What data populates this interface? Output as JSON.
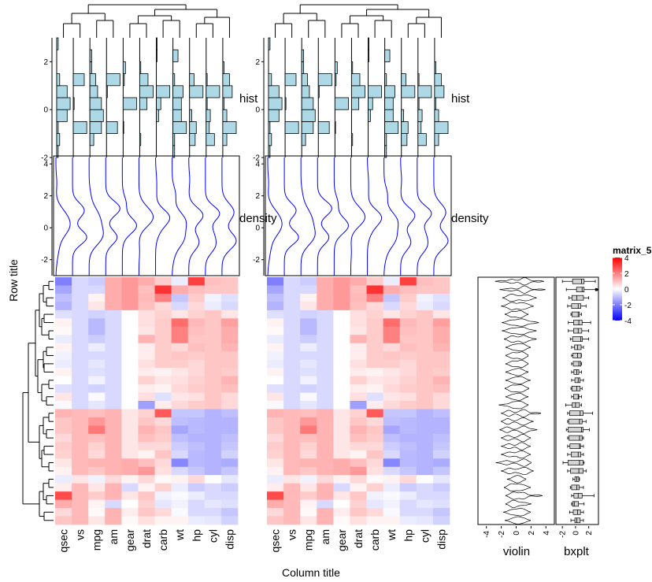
{
  "chart_data": {
    "type": "heatmap",
    "column_title": "Column title",
    "row_title": "Row title",
    "row_title_color": "#ff0000",
    "columns": [
      "qsec",
      "vs",
      "mpg",
      "am",
      "gear",
      "drat",
      "carb",
      "wt",
      "hp",
      "cyl",
      "disp"
    ],
    "annotations": {
      "top": [
        {
          "name": "hist",
          "type": "histogram",
          "ylim": [
            -2,
            3
          ],
          "ticks": [
            "-2",
            "0",
            "2"
          ],
          "fill": "#add8e6"
        },
        {
          "name": "density",
          "type": "density",
          "ylim": [
            -3,
            4.5
          ],
          "ticks": [
            "-2",
            "0",
            "2",
            "4"
          ],
          "color": "#0000ff"
        }
      ],
      "right": [
        {
          "name": "violin",
          "type": "violin",
          "ticks": [
            "-4",
            "-2",
            "0",
            "2",
            "4"
          ]
        },
        {
          "name": "bxplt",
          "type": "boxplot",
          "ticks": [
            "-2",
            "0",
            "2"
          ]
        }
      ]
    },
    "legend": {
      "title": "matrix_5",
      "ticks": [
        "4",
        "2",
        "0",
        "-2",
        "-4"
      ],
      "range": [
        -4,
        4
      ],
      "colors": {
        "low": "#0000ff",
        "mid": "#ffffff",
        "high": "#ff0000"
      }
    },
    "row_groups": [
      {
        "rows": [
          [
            -2.0,
            -0.6,
            -0.8,
            1.3,
            1.6,
            1.3,
            0.8,
            -0.3,
            3.0,
            1.0,
            0.9
          ],
          [
            -1.4,
            -0.6,
            -0.6,
            1.3,
            1.6,
            1.0,
            3.2,
            1.3,
            1.0,
            0.9,
            0.9
          ],
          [
            -1.0,
            -0.6,
            0.2,
            1.3,
            1.6,
            1.1,
            2.0,
            -0.9,
            0.8,
            -0.2,
            -0.5
          ],
          [
            -1.2,
            -0.6,
            0.4,
            1.3,
            1.6,
            1.0,
            0.6,
            -0.6,
            0.6,
            -0.3,
            -0.6
          ],
          [
            -0.5,
            -0.6,
            -0.7,
            -0.6,
            0.0,
            0.5,
            0.7,
            0.4,
            0.7,
            0.9,
            0.4
          ],
          [
            0.2,
            -0.6,
            -1.1,
            -0.6,
            0.0,
            0.5,
            0.8,
            2.3,
            1.1,
            0.9,
            1.5
          ],
          [
            0.1,
            -0.6,
            -1.1,
            -0.6,
            0.0,
            0.4,
            0.8,
            2.0,
            1.0,
            0.9,
            1.3
          ],
          [
            -0.3,
            -0.6,
            -0.8,
            -0.6,
            0.0,
            1.2,
            0.8,
            2.0,
            0.9,
            0.9,
            1.3
          ],
          [
            0.2,
            -0.6,
            -0.3,
            -0.6,
            0.0,
            0.3,
            0.8,
            0.6,
            1.0,
            0.9,
            1.2
          ],
          [
            -0.2,
            -0.6,
            -0.6,
            -0.6,
            0.0,
            0.3,
            0.8,
            0.9,
            0.8,
            0.9,
            0.9
          ],
          [
            -0.3,
            -0.6,
            -0.4,
            -0.6,
            0.0,
            0.5,
            0.8,
            0.8,
            0.6,
            0.9,
            0.9
          ],
          [
            0.2,
            -0.6,
            -0.5,
            -0.6,
            0.0,
            0.3,
            0.2,
            0.4,
            0.6,
            0.9,
            0.8
          ],
          [
            0.0,
            -0.6,
            -0.2,
            -0.6,
            0.0,
            0.7,
            0.4,
            0.5,
            0.7,
            0.9,
            1.2
          ],
          [
            -0.5,
            -0.6,
            -0.7,
            -0.6,
            0.0,
            0.3,
            0.2,
            0.6,
            0.8,
            0.9,
            1.0
          ],
          [
            0.4,
            -0.6,
            -0.1,
            -0.6,
            0.0,
            0.5,
            -0.5,
            0.4,
            0.5,
            0.9,
            0.6
          ],
          [
            -0.1,
            -0.6,
            -0.4,
            -0.6,
            0.0,
            -1.5,
            0.3,
            0.6,
            0.8,
            0.9,
            0.6
          ]
        ]
      },
      {
        "rows": [
          [
            1.2,
            1.1,
            1.0,
            1.2,
            0.4,
            0.7,
            2.6,
            -0.9,
            -0.9,
            -1.2,
            -1.0
          ],
          [
            0.9,
            1.1,
            1.6,
            1.2,
            0.4,
            0.9,
            0.6,
            -1.0,
            -1.1,
            -1.2,
            -1.2
          ],
          [
            0.9,
            1.1,
            2.1,
            1.2,
            0.4,
            1.2,
            0.9,
            -1.4,
            -1.1,
            -1.2,
            -1.2
          ],
          [
            0.6,
            1.1,
            1.0,
            1.2,
            0.4,
            1.0,
            0.8,
            -1.0,
            -1.2,
            -1.2,
            -1.0
          ],
          [
            0.8,
            1.1,
            0.7,
            1.2,
            0.4,
            0.6,
            0.6,
            -0.8,
            -1.0,
            -1.2,
            -0.9
          ],
          [
            0.7,
            1.1,
            0.6,
            1.2,
            0.4,
            0.2,
            0.9,
            -0.6,
            -1.1,
            -1.2,
            -0.7
          ],
          [
            0.4,
            1.1,
            1.2,
            1.2,
            1.3,
            1.0,
            0.6,
            -1.9,
            -1.1,
            -1.2,
            -1.3
          ],
          [
            0.2,
            1.1,
            0.9,
            1.2,
            1.3,
            1.6,
            0.5,
            -0.6,
            -0.9,
            -1.2,
            -0.9
          ]
        ]
      },
      {
        "rows": [
          [
            -0.3,
            0.4,
            -0.2,
            0.6,
            0.2,
            0.6,
            0.1,
            0.2,
            0.6,
            0.0,
            -0.4
          ],
          [
            0.3,
            1.1,
            0.4,
            1.2,
            -0.6,
            0.2,
            0.7,
            -0.3,
            -0.8,
            -0.6,
            -0.8
          ],
          [
            2.8,
            1.1,
            0.8,
            1.2,
            0.4,
            0.9,
            -0.2,
            -0.1,
            -0.3,
            -0.6,
            -0.6
          ],
          [
            1.3,
            1.1,
            0.2,
            -0.6,
            0.0,
            0.7,
            -0.4,
            -0.2,
            -0.6,
            -0.4,
            -0.5
          ],
          [
            0.6,
            1.1,
            0.1,
            1.2,
            0.3,
            0.9,
            0.6,
            -0.1,
            -0.6,
            -0.6,
            -0.9
          ],
          [
            0.9,
            1.1,
            0.4,
            1.2,
            0.1,
            0.5,
            0.2,
            0.2,
            -0.3,
            -0.4,
            -0.7
          ]
        ]
      }
    ]
  }
}
